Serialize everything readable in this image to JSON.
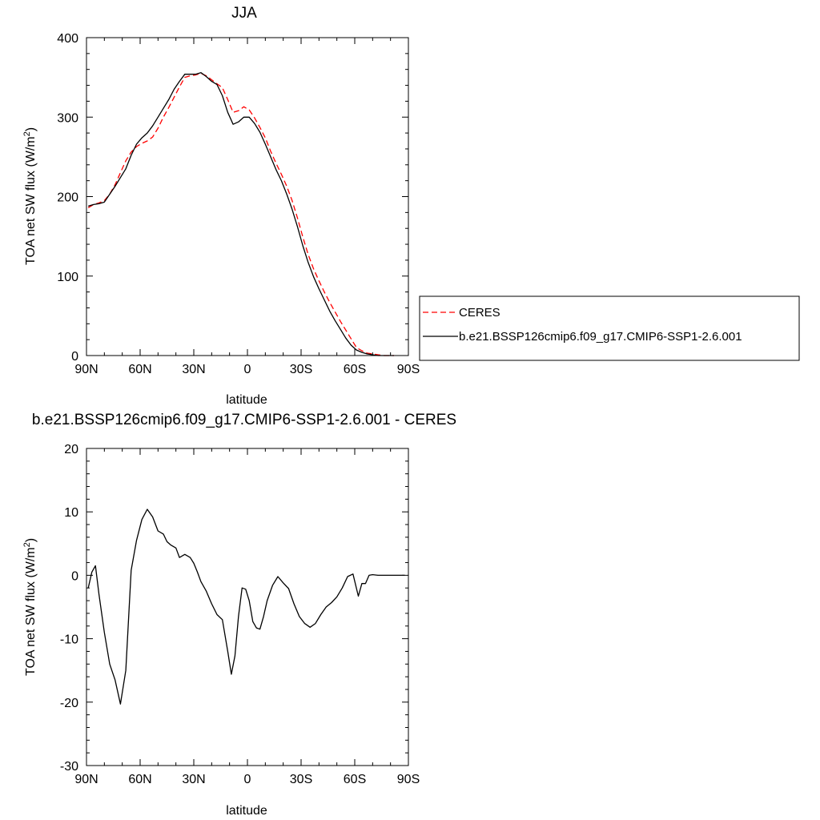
{
  "chart_data": [
    {
      "type": "line",
      "title": "JJA",
      "xlabel": "latitude",
      "ylabel_main": "TOA net SW flux (W/m",
      "ylabel_sup": "2",
      "ylabel_close": ")",
      "xlim": [
        90,
        -90
      ],
      "ylim": [
        0,
        400
      ],
      "x_ticks": [
        90,
        60,
        30,
        0,
        -30,
        -60,
        -90
      ],
      "x_tick_labels": [
        "90N",
        "60N",
        "30N",
        "0",
        "30S",
        "60S",
        "90S"
      ],
      "y_ticks": [
        0,
        100,
        200,
        300,
        400
      ],
      "y_tick_labels": [
        "0",
        "100",
        "200",
        "300",
        "400"
      ],
      "grid": false,
      "legend_position": "right",
      "series": [
        {
          "name": "CERES",
          "color": "#ff0000",
          "dash": "dashed",
          "x": [
            89,
            86,
            83,
            80,
            77,
            74,
            71,
            68,
            65,
            62,
            59,
            56,
            53,
            50,
            47,
            44,
            41,
            38,
            35,
            32,
            29,
            26,
            23,
            20,
            17,
            14,
            11,
            8,
            5,
            2,
            -1,
            -4,
            -7,
            -10,
            -13,
            -16,
            -19,
            -22,
            -25,
            -28,
            -31,
            -34,
            -37,
            -40,
            -43,
            -46,
            -49,
            -52,
            -55,
            -58,
            -61,
            -64,
            -67,
            -70,
            -73,
            -76,
            -79,
            -82
          ],
          "y": [
            186,
            190,
            192,
            195,
            203,
            215,
            230,
            245,
            256,
            263,
            267,
            270,
            275,
            286,
            300,
            312,
            325,
            338,
            350,
            352,
            353,
            355,
            352,
            347,
            342,
            337,
            322,
            306,
            308,
            313,
            309,
            299,
            287,
            274,
            257,
            242,
            228,
            213,
            195,
            173,
            149,
            127,
            109,
            94,
            80,
            67,
            55,
            43,
            32,
            21,
            10,
            6,
            3,
            2,
            1,
            0,
            0,
            0
          ]
        },
        {
          "name": "b.e21.BSSP126cmip6.f09_g17.CMIP6-SSP1-2.6.001",
          "color": "#000000",
          "dash": "solid",
          "x": [
            89,
            86,
            83,
            80,
            77,
            74,
            71,
            68,
            65,
            62,
            59,
            56,
            53,
            50,
            47,
            44,
            41,
            38,
            35,
            32,
            29,
            26,
            23,
            20,
            17,
            14,
            11,
            8,
            5,
            2,
            -1,
            -4,
            -7,
            -10,
            -13,
            -16,
            -19,
            -22,
            -25,
            -28,
            -31,
            -34,
            -37,
            -40,
            -43,
            -46,
            -49,
            -52,
            -55,
            -58,
            -61,
            -64,
            -67,
            -70,
            -73,
            -76,
            -79,
            -82
          ],
          "y": [
            188,
            190,
            191,
            193,
            203,
            213,
            224,
            235,
            252,
            266,
            274,
            280,
            289,
            300,
            311,
            322,
            335,
            345,
            354,
            354,
            354,
            356,
            351,
            345,
            341,
            327,
            306,
            291,
            294,
            300,
            300,
            292,
            281,
            266,
            250,
            234,
            220,
            203,
            184,
            162,
            138,
            117,
            99,
            84,
            70,
            56,
            44,
            33,
            22,
            13,
            7,
            4,
            2,
            1,
            0,
            0,
            0,
            0
          ]
        }
      ]
    },
    {
      "type": "line",
      "title": "b.e21.BSSP126cmip6.f09_g17.CMIP6-SSP1-2.6.001 - CERES",
      "xlabel": "latitude",
      "ylabel_main": "TOA net SW flux (W/m",
      "ylabel_sup": "2",
      "ylabel_close": ")",
      "xlim": [
        90,
        -90
      ],
      "ylim": [
        -30,
        20
      ],
      "x_ticks": [
        90,
        60,
        30,
        0,
        -30,
        -60,
        -90
      ],
      "x_tick_labels": [
        "90N",
        "60N",
        "30N",
        "0",
        "30S",
        "60S",
        "90S"
      ],
      "y_ticks": [
        -30,
        -20,
        -10,
        0,
        10,
        20
      ],
      "y_tick_labels": [
        "-30",
        "-20",
        "-10",
        "0",
        "10",
        "20"
      ],
      "grid": false,
      "series": [
        {
          "color": "#000000",
          "dash": "solid",
          "x": [
            89,
            87,
            85,
            83,
            80,
            77,
            74,
            71,
            68,
            65,
            62,
            59,
            56,
            53,
            50,
            47,
            45,
            43,
            40,
            38,
            35,
            32,
            30,
            28,
            26,
            23,
            20,
            17,
            14,
            11,
            9,
            7,
            5,
            3,
            1,
            -1,
            -3,
            -5,
            -7,
            -9,
            -11,
            -14,
            -17,
            -20,
            -23,
            -26,
            -29,
            -32,
            -35,
            -38,
            -41,
            -44,
            -47,
            -50,
            -53,
            -56,
            -59,
            -62,
            -64,
            -66,
            -68,
            -70,
            -73,
            -76,
            -79,
            -82,
            -85,
            -88
          ],
          "y": [
            -2,
            0.5,
            1.5,
            -3,
            -9,
            -14,
            -16.5,
            -20.3,
            -15,
            0.8,
            5.5,
            8.8,
            10.4,
            9.2,
            7.0,
            6.5,
            5.3,
            4.8,
            4.3,
            2.8,
            3.3,
            2.8,
            1.9,
            0.5,
            -1.0,
            -2.5,
            -4.5,
            -6.2,
            -7.0,
            -12.0,
            -15.6,
            -12.7,
            -6.5,
            -2.0,
            -2.2,
            -4.0,
            -7.3,
            -8.3,
            -8.5,
            -6.5,
            -4.0,
            -1.6,
            -0.2,
            -1.2,
            -2.1,
            -4.5,
            -6.5,
            -7.6,
            -8.2,
            -7.6,
            -6.2,
            -5.0,
            -4.3,
            -3.4,
            -2.0,
            -0.2,
            0.2,
            -3.3,
            -1.3,
            -1.3,
            0,
            0.1,
            0,
            0,
            0,
            0,
            0,
            0
          ]
        }
      ]
    }
  ]
}
